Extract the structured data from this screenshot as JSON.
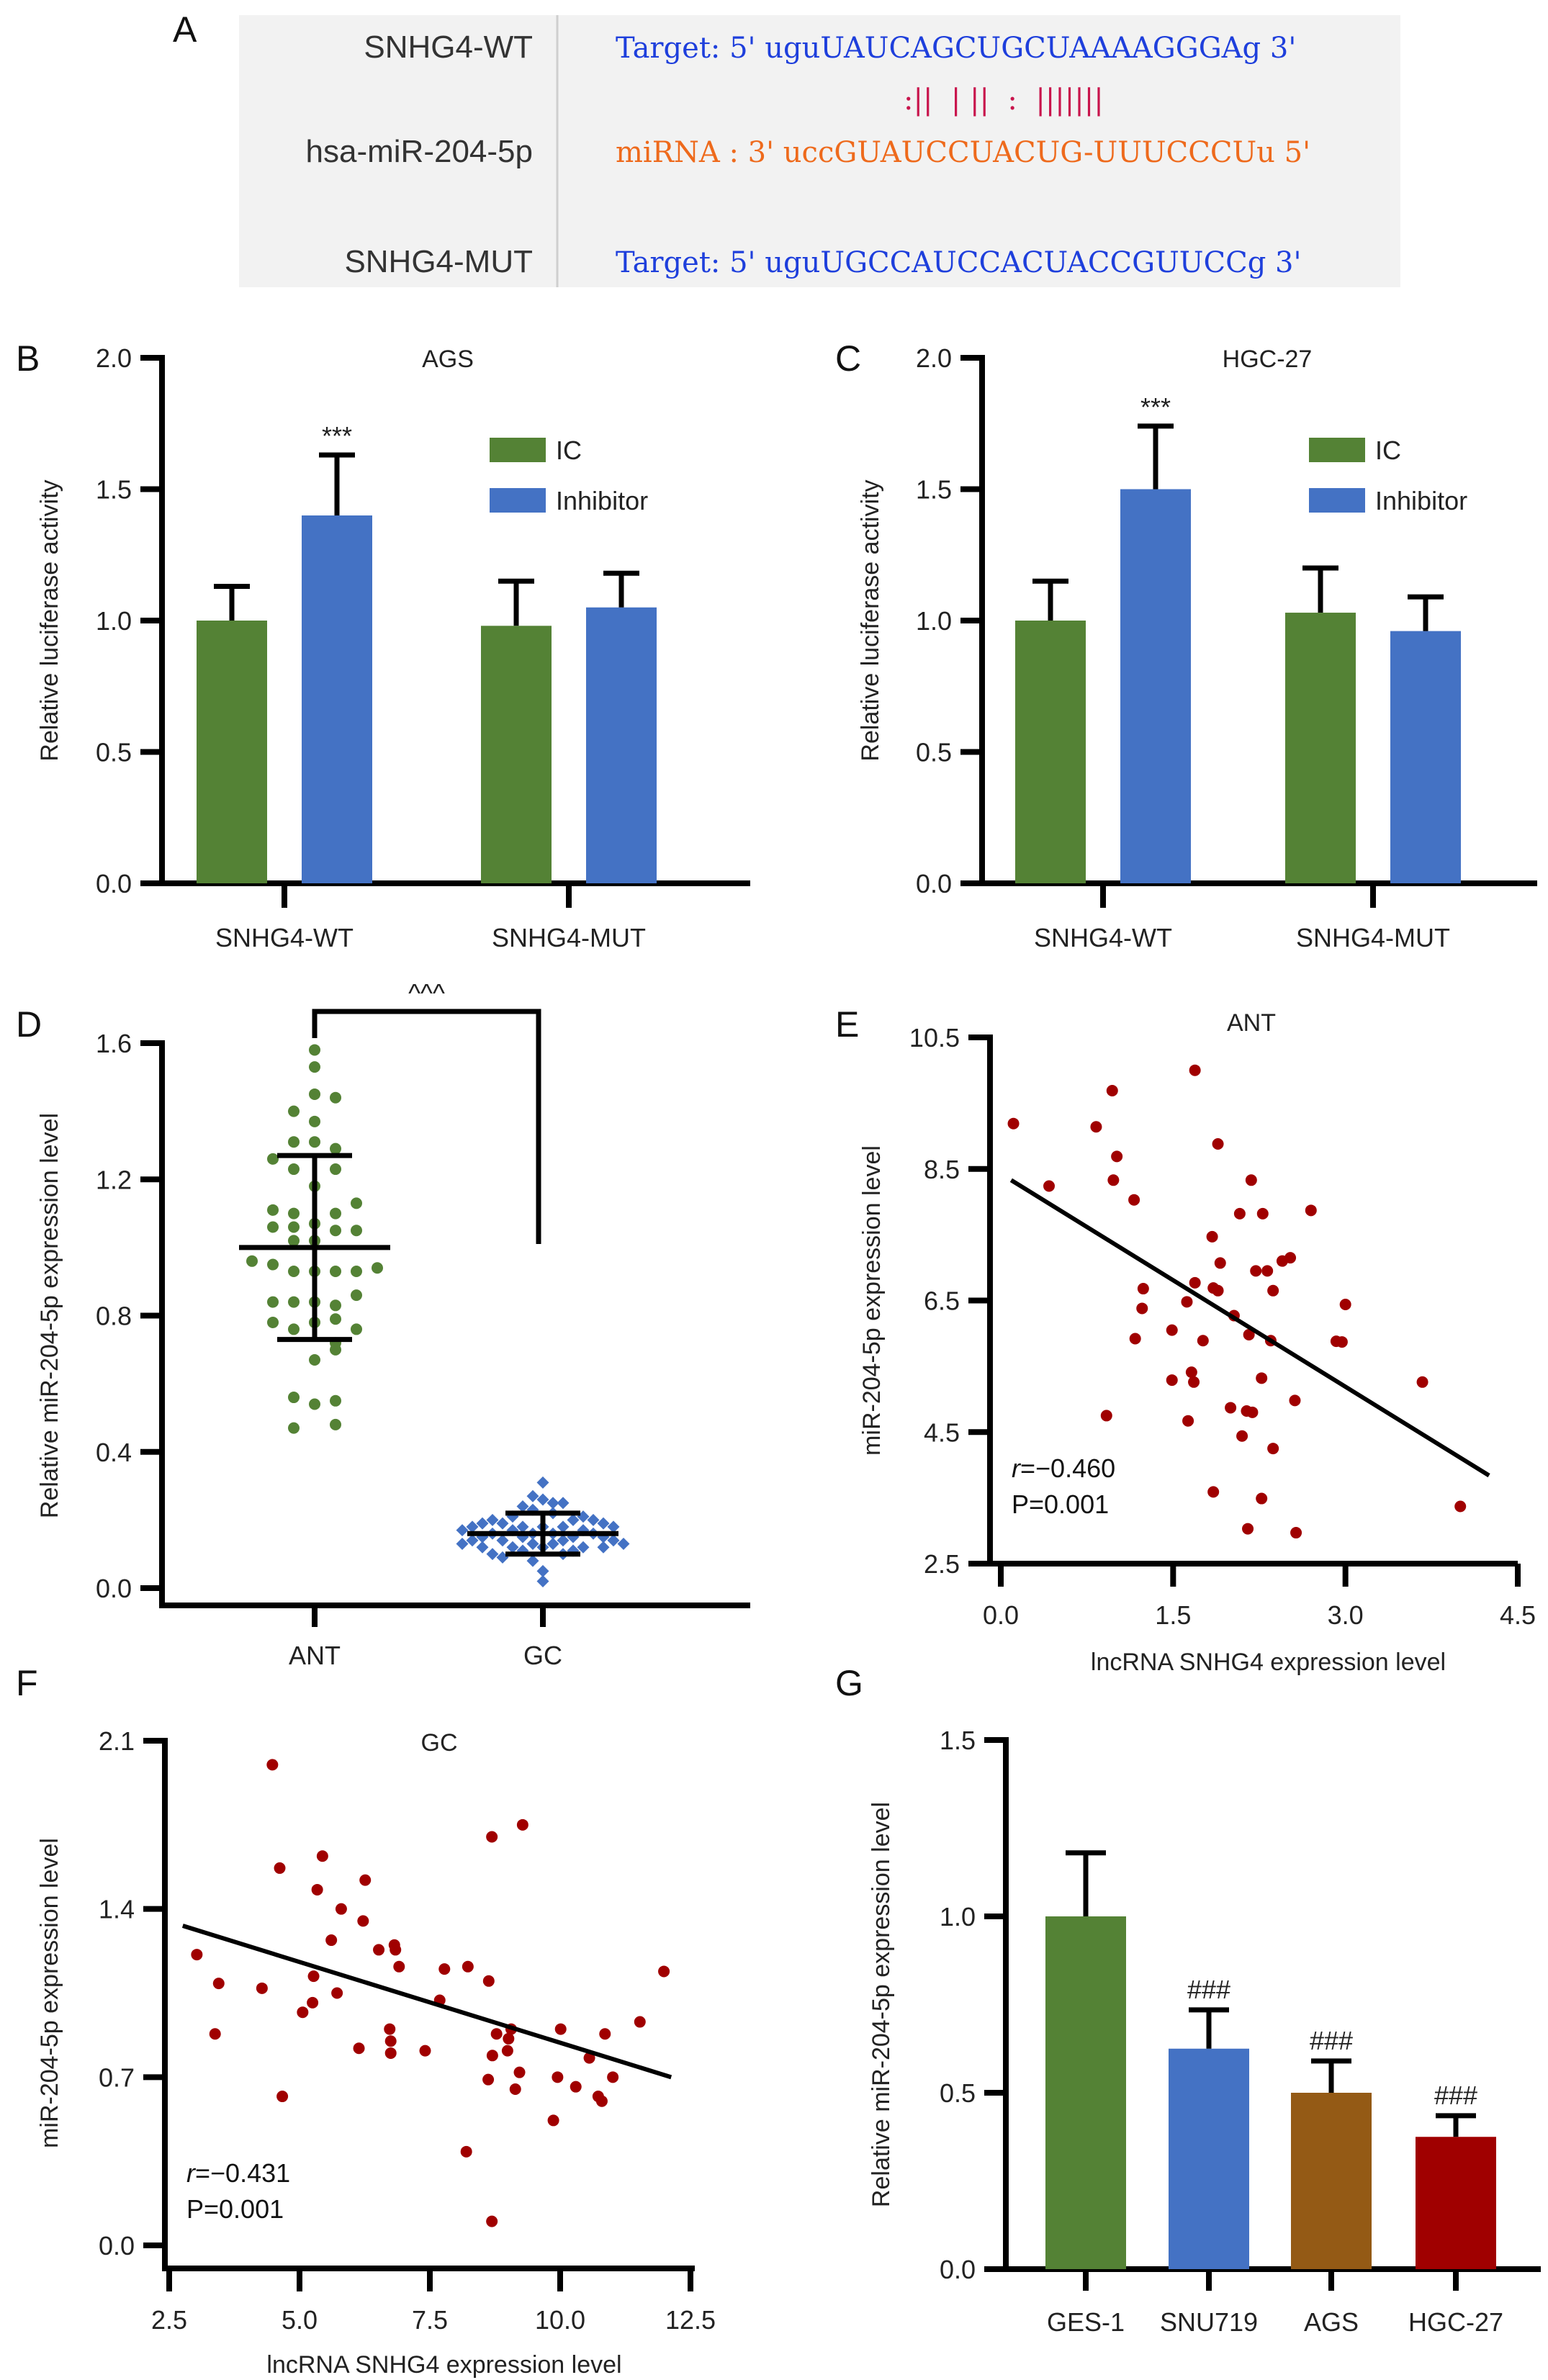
{
  "colors": {
    "green": "#548235",
    "blue": "#4472c4",
    "brown": "#945a15",
    "darkred": "#a00000",
    "scatter": "#a00000",
    "seq_blue": "#1e3fdc",
    "seq_orange": "#ee6a1c",
    "seq_match": "#c8144c",
    "panel_bg": "#f2f2f2"
  },
  "panel_a": {
    "label": "A",
    "rows": [
      {
        "name": "SNHG4-WT",
        "sequence": "Target: 5' uguUAUCAGCUGCUAAAAGGGAg 3'",
        "color_key": "seq_blue"
      },
      {
        "name": "",
        "sequence": ":||  | ||  :  |||||||",
        "color_key": "seq_match"
      },
      {
        "name": "hsa-miR-204-5p",
        "sequence": "miRNA : 3' uccGUAUCCUACUG-UUUCCCUu 5'",
        "color_key": "seq_orange"
      },
      {
        "name": "SNHG4-MUT",
        "sequence": "Target: 5' uguUGCCAUCCACUACCGUUCCg 3'",
        "color_key": "seq_blue"
      }
    ]
  },
  "chart_data": [
    {
      "id": "B",
      "type": "bar",
      "panel_label": "B",
      "title": "AGS",
      "xlabel": "",
      "ylabel": "Relative luciferase activity",
      "categories": [
        "SNHG4-WT",
        "SNHG4-MUT"
      ],
      "ylim": [
        0,
        2.0
      ],
      "yticks": [
        "0.0",
        "0.5",
        "1.0",
        "1.5",
        "2.0"
      ],
      "series": [
        {
          "name": "IC",
          "color_key": "green",
          "values": [
            1.0,
            0.98
          ],
          "errors": [
            0.13,
            0.17
          ]
        },
        {
          "name": "Inhibitor",
          "color_key": "blue",
          "values": [
            1.4,
            1.05
          ],
          "errors": [
            0.23,
            0.13
          ]
        }
      ],
      "annotations": [
        {
          "series": 1,
          "category": 0,
          "text": "***"
        }
      ],
      "legend": "top-right"
    },
    {
      "id": "C",
      "type": "bar",
      "panel_label": "C",
      "title": "HGC-27",
      "xlabel": "",
      "ylabel": "Relative luciferase activity",
      "categories": [
        "SNHG4-WT",
        "SNHG4-MUT"
      ],
      "ylim": [
        0,
        2.0
      ],
      "yticks": [
        "0.0",
        "0.5",
        "1.0",
        "1.5",
        "2.0"
      ],
      "series": [
        {
          "name": "IC",
          "color_key": "green",
          "values": [
            1.0,
            1.03
          ],
          "errors": [
            0.15,
            0.17
          ]
        },
        {
          "name": "Inhibitor",
          "color_key": "blue",
          "values": [
            1.5,
            0.96
          ],
          "errors": [
            0.24,
            0.13
          ]
        }
      ],
      "annotations": [
        {
          "series": 1,
          "category": 0,
          "text": "***"
        }
      ],
      "legend": "top-right"
    },
    {
      "id": "D",
      "type": "scatter",
      "panel_label": "D",
      "title": "",
      "xlabel": "",
      "ylabel": "Relative miR-204-5p expression level",
      "categories": [
        "ANT",
        "GC"
      ],
      "ylim": [
        0,
        1.6
      ],
      "yticks": [
        "0.0",
        "0.4",
        "0.8",
        "1.2",
        "1.6"
      ],
      "significance": "^^^",
      "groups": [
        {
          "name": "ANT",
          "color_key": "green",
          "marker": "circle",
          "mean": 1.0,
          "sd_low": 0.73,
          "sd_high": 1.27,
          "values": [
            1.58,
            1.53,
            1.45,
            1.44,
            1.4,
            1.37,
            1.31,
            1.31,
            1.29,
            1.26,
            1.23,
            1.23,
            1.18,
            1.13,
            1.11,
            1.1,
            1.1,
            1.07,
            1.06,
            1.06,
            1.05,
            1.05,
            1.02,
            1.02,
            0.96,
            0.95,
            0.93,
            0.93,
            0.93,
            0.93,
            0.94,
            0.86,
            0.84,
            0.84,
            0.84,
            0.83,
            0.79,
            0.78,
            0.78,
            0.76,
            0.76,
            0.72,
            0.7,
            0.67,
            0.56,
            0.54,
            0.55,
            0.47,
            0.48
          ],
          "offsets": [
            0,
            0,
            0,
            1,
            -1,
            0,
            -1,
            0,
            1,
            -2,
            -1,
            1,
            0,
            2,
            -2,
            -1,
            1,
            0,
            -2,
            -1,
            1,
            2,
            -1,
            0,
            -3,
            -2,
            -1,
            1,
            2,
            0,
            3,
            2,
            -2,
            -1,
            0,
            1,
            1,
            -2,
            0,
            -1,
            2,
            1,
            1,
            0,
            -1,
            0,
            1,
            -1,
            1
          ]
        },
        {
          "name": "GC",
          "color_key": "blue",
          "marker": "diamond",
          "mean": 0.16,
          "sd_low": 0.1,
          "sd_high": 0.22,
          "values": [
            0.31,
            0.27,
            0.26,
            0.25,
            0.25,
            0.24,
            0.23,
            0.22,
            0.21,
            0.21,
            0.2,
            0.2,
            0.2,
            0.19,
            0.19,
            0.19,
            0.18,
            0.18,
            0.18,
            0.18,
            0.18,
            0.17,
            0.17,
            0.17,
            0.16,
            0.16,
            0.16,
            0.16,
            0.15,
            0.15,
            0.15,
            0.15,
            0.14,
            0.14,
            0.14,
            0.14,
            0.13,
            0.13,
            0.13,
            0.13,
            0.12,
            0.12,
            0.12,
            0.12,
            0.12,
            0.11,
            0.11,
            0.1,
            0.1,
            0.09,
            0.08,
            0.05,
            0.02
          ],
          "offsets": [
            0,
            -1,
            0,
            1,
            2,
            -2,
            -1,
            1,
            4,
            -3,
            5,
            -5,
            3,
            -6,
            -4,
            6,
            -7,
            -2,
            0,
            2,
            7,
            -8,
            -3,
            4,
            -5,
            -1,
            1,
            5,
            -6,
            -2,
            3,
            6,
            -7,
            -4,
            2,
            7,
            -8,
            -1,
            1,
            8,
            -6,
            -3,
            0,
            4,
            6,
            -2,
            3,
            -5,
            2,
            -4,
            -1,
            0,
            0
          ]
        }
      ]
    },
    {
      "id": "E",
      "type": "scatter",
      "panel_label": "E",
      "title": "ANT",
      "xlabel": "lncRNA SNHG4 expression level",
      "ylabel": "miR-204-5p expression level",
      "xlim": [
        0,
        4.5
      ],
      "ylim": [
        2.5,
        10.5
      ],
      "xticks": [
        "0.0",
        "1.5",
        "3.0",
        "4.5"
      ],
      "yticks": [
        "2.5",
        "4.5",
        "6.5",
        "8.5",
        "10.5"
      ],
      "stats": {
        "r_label": "r",
        "r_value": "=−0.460",
        "p_text": "P=0.001"
      },
      "fit_line": {
        "x": [
          0.09,
          4.25
        ],
        "y": [
          8.33,
          3.84
        ]
      },
      "points": [
        [
          0.11,
          9.19
        ],
        [
          0.42,
          8.24
        ],
        [
          0.97,
          9.69
        ],
        [
          0.83,
          9.14
        ],
        [
          1.01,
          8.69
        ],
        [
          0.98,
          8.33
        ],
        [
          1.16,
          8.03
        ],
        [
          1.69,
          10.0
        ],
        [
          1.89,
          8.88
        ],
        [
          2.18,
          8.33
        ],
        [
          2.08,
          7.82
        ],
        [
          2.28,
          7.82
        ],
        [
          2.7,
          7.87
        ],
        [
          1.84,
          7.47
        ],
        [
          1.91,
          7.07
        ],
        [
          2.22,
          6.95
        ],
        [
          2.32,
          6.95
        ],
        [
          2.45,
          7.1
        ],
        [
          2.52,
          7.15
        ],
        [
          1.69,
          6.77
        ],
        [
          1.85,
          6.69
        ],
        [
          1.89,
          6.65
        ],
        [
          2.37,
          6.65
        ],
        [
          1.24,
          6.68
        ],
        [
          1.62,
          6.48
        ],
        [
          1.23,
          6.38
        ],
        [
          2.03,
          6.27
        ],
        [
          3.0,
          6.44
        ],
        [
          1.49,
          6.05
        ],
        [
          1.17,
          5.92
        ],
        [
          1.76,
          5.89
        ],
        [
          2.16,
          5.98
        ],
        [
          2.35,
          5.89
        ],
        [
          2.92,
          5.88
        ],
        [
          2.97,
          5.87
        ],
        [
          1.66,
          5.41
        ],
        [
          1.68,
          5.26
        ],
        [
          1.49,
          5.29
        ],
        [
          2.27,
          5.32
        ],
        [
          3.67,
          5.26
        ],
        [
          2.56,
          4.98
        ],
        [
          2.0,
          4.87
        ],
        [
          2.14,
          4.82
        ],
        [
          2.19,
          4.8
        ],
        [
          0.92,
          4.75
        ],
        [
          1.63,
          4.67
        ],
        [
          2.1,
          4.44
        ],
        [
          2.37,
          4.25
        ],
        [
          1.85,
          3.59
        ],
        [
          2.27,
          3.49
        ],
        [
          4.0,
          3.37
        ],
        [
          2.15,
          3.03
        ],
        [
          2.57,
          2.97
        ]
      ]
    },
    {
      "id": "F",
      "type": "scatter",
      "panel_label": "F",
      "title": "GC",
      "xlabel": "lncRNA SNHG4 expression level",
      "ylabel": "miR-204-5p expression level",
      "xlim": [
        2.5,
        12.5
      ],
      "ylim": [
        0.0,
        2.1
      ],
      "xticks": [
        "2.5",
        "5.0",
        "7.5",
        "10.0",
        "12.5"
      ],
      "yticks": [
        "0.0",
        "0.7",
        "1.4",
        "2.1"
      ],
      "stats": {
        "r_label": "r",
        "r_value": "=−0.431",
        "p_text": "P=0.001"
      },
      "fit_line": {
        "x": [
          2.76,
          12.13
        ],
        "y": [
          1.33,
          0.7
        ]
      },
      "points": [
        [
          4.48,
          2.0
        ],
        [
          9.28,
          1.75
        ],
        [
          8.69,
          1.7
        ],
        [
          5.44,
          1.62
        ],
        [
          4.62,
          1.57
        ],
        [
          6.26,
          1.52
        ],
        [
          5.34,
          1.48
        ],
        [
          5.8,
          1.4
        ],
        [
          6.22,
          1.35
        ],
        [
          5.61,
          1.27
        ],
        [
          6.52,
          1.23
        ],
        [
          6.82,
          1.25
        ],
        [
          6.84,
          1.23
        ],
        [
          6.91,
          1.16
        ],
        [
          7.78,
          1.15
        ],
        [
          8.23,
          1.16
        ],
        [
          8.63,
          1.1
        ],
        [
          3.03,
          1.21
        ],
        [
          3.45,
          1.09
        ],
        [
          4.28,
          1.07
        ],
        [
          5.27,
          1.12
        ],
        [
          5.72,
          1.05
        ],
        [
          5.25,
          1.01
        ],
        [
          5.06,
          0.97
        ],
        [
          7.69,
          1.02
        ],
        [
          3.38,
          0.88
        ],
        [
          6.73,
          0.9
        ],
        [
          6.75,
          0.85
        ],
        [
          6.75,
          0.8
        ],
        [
          6.14,
          0.82
        ],
        [
          7.41,
          0.81
        ],
        [
          8.78,
          0.88
        ],
        [
          9.06,
          0.9
        ],
        [
          9.01,
          0.86
        ],
        [
          8.99,
          0.81
        ],
        [
          8.7,
          0.79
        ],
        [
          10.01,
          0.9
        ],
        [
          10.86,
          0.88
        ],
        [
          11.53,
          0.93
        ],
        [
          11.99,
          1.14
        ],
        [
          10.56,
          0.78
        ],
        [
          8.62,
          0.69
        ],
        [
          9.22,
          0.72
        ],
        [
          9.14,
          0.65
        ],
        [
          9.95,
          0.7
        ],
        [
          10.3,
          0.66
        ],
        [
          10.73,
          0.62
        ],
        [
          10.8,
          0.6
        ],
        [
          11.01,
          0.7
        ],
        [
          4.67,
          0.62
        ],
        [
          9.87,
          0.52
        ],
        [
          8.2,
          0.39
        ],
        [
          8.69,
          0.1
        ]
      ]
    },
    {
      "id": "G",
      "type": "bar",
      "panel_label": "G",
      "title": "",
      "xlabel": "",
      "ylabel": "Relative miR-204-5p expression level",
      "categories": [
        "GES-1",
        "SNU719",
        "AGS",
        "HGC-27"
      ],
      "ylim": [
        0,
        1.5
      ],
      "yticks": [
        "0.0",
        "0.5",
        "1.0",
        "1.5"
      ],
      "values": [
        1.0,
        0.625,
        0.5,
        0.375
      ],
      "errors": [
        0.18,
        0.11,
        0.09,
        0.06
      ],
      "color_keys": [
        "green",
        "blue",
        "brown",
        "darkred"
      ],
      "annotations": [
        "",
        "###",
        "###",
        "###"
      ]
    }
  ]
}
